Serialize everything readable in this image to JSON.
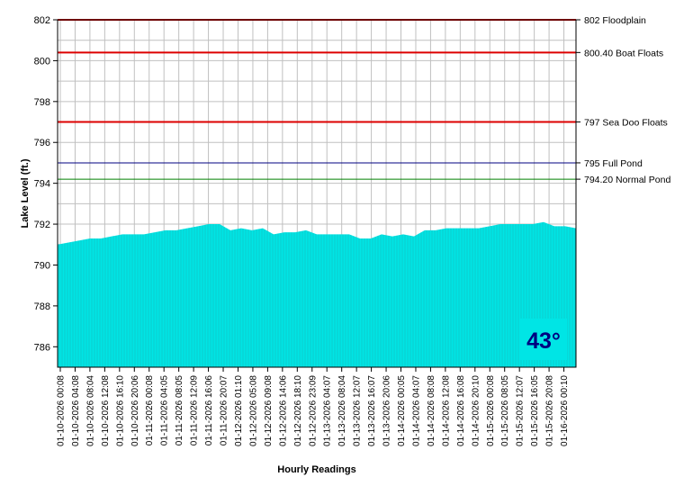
{
  "chart_data": {
    "type": "area",
    "xlabel": "Hourly Readings",
    "ylabel": "Lake Level (ft.)",
    "ylim": [
      785,
      802
    ],
    "yticks": [
      786,
      788,
      790,
      792,
      794,
      796,
      798,
      800,
      802
    ],
    "grid": true,
    "x_tick_labels": [
      "01-10-2026 00:08",
      "01-10-2026 04:08",
      "01-10-2026 08:04",
      "01-10-2026 12:08",
      "01-10-2026 16:10",
      "01-10-2026 20:06",
      "01-11-2026 00:08",
      "01-11-2026 04:05",
      "01-11-2026 08:05",
      "01-11-2026 12:09",
      "01-11-2026 16:06",
      "01-11-2026 20:07",
      "01-12-2026 01:10",
      "01-12-2026 05:08",
      "01-12-2026 09:08",
      "01-12-2026 14:06",
      "01-12-2026 18:10",
      "01-12-2026 23:09",
      "01-13-2026 04:07",
      "01-13-2026 08:04",
      "01-13-2026 12:07",
      "01-13-2026 16:07",
      "01-13-2026 20:06",
      "01-14-2026 00:05",
      "01-14-2026 04:07",
      "01-14-2026 08:08",
      "01-14-2026 12:08",
      "01-14-2026 16:08",
      "01-14-2026 20:10",
      "01-15-2026 00:08",
      "01-15-2026 08:05",
      "01-15-2026 12:07",
      "01-15-2026 16:05",
      "01-15-2026 20:08",
      "01-16-2026 00:10"
    ],
    "series": [
      {
        "color": "#00e5e5",
        "values": [
          791.0,
          791.1,
          791.2,
          791.3,
          791.3,
          791.4,
          791.5,
          791.5,
          791.5,
          791.6,
          791.7,
          791.7,
          791.8,
          791.9,
          792.0,
          792.0,
          791.7,
          791.8,
          791.7,
          791.8,
          791.5,
          791.6,
          791.6,
          791.7,
          791.5,
          791.5,
          791.5,
          791.5,
          791.3,
          791.3,
          791.5,
          791.4,
          791.5,
          791.4,
          791.7,
          791.7,
          791.8,
          791.8,
          791.8,
          791.8,
          791.9,
          792.0,
          792.0,
          792.0,
          792.0,
          792.1,
          791.9,
          791.9,
          791.8
        ]
      }
    ],
    "reference_lines": [
      {
        "value": 802,
        "label": "802 Floodplain",
        "color": "#dd0000"
      },
      {
        "value": 800.4,
        "label": "800.40 Boat Floats",
        "color": "#dd0000"
      },
      {
        "value": 797,
        "label": "797 Sea Doo Floats",
        "color": "#dd0000"
      },
      {
        "value": 795,
        "label": "795 Full Pond",
        "color": "#000080"
      },
      {
        "value": 794.2,
        "label": "794.20 Normal Pond",
        "color": "#008000"
      }
    ]
  },
  "temperature": {
    "text": "43°",
    "bg_color": "#00e5e5",
    "text_color": "#000080"
  }
}
